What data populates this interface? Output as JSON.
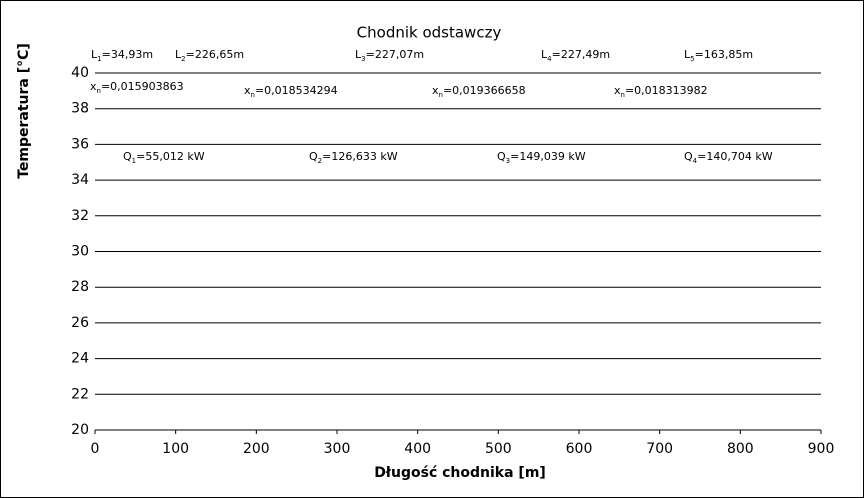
{
  "chart_data": {
    "type": "line",
    "title": "Chodnik odstawczy",
    "xlabel": "Długość chodnika [m]",
    "ylabel": "Temperatura [°C]",
    "xlim": [
      0,
      900
    ],
    "xticks": [
      0,
      100,
      200,
      300,
      400,
      500,
      600,
      700,
      800,
      900
    ],
    "ylim": [
      20,
      40
    ],
    "yticks": [
      20,
      22,
      24,
      26,
      28,
      30,
      32,
      34,
      36,
      38,
      40
    ],
    "grid": true,
    "grid_color": "#000000",
    "annotations": [
      {
        "symbol": "L",
        "subscript": "1",
        "text": "=34,93m"
      },
      {
        "symbol": "L",
        "subscript": "2",
        "text": "=226,65m"
      },
      {
        "symbol": "L",
        "subscript": "3",
        "text": "=227,07m"
      },
      {
        "symbol": "L",
        "subscript": "4",
        "text": "=227,49m"
      },
      {
        "symbol": "L",
        "subscript": "5",
        "text": "=163,85m"
      },
      {
        "symbol": "x",
        "subscript": "n",
        "text": "=0,015903863"
      },
      {
        "symbol": "x",
        "subscript": "n",
        "text": "=0,018534294"
      },
      {
        "symbol": "x",
        "subscript": "n",
        "text": "=0,019366658"
      },
      {
        "symbol": "x",
        "subscript": "n",
        "text": "=0,018313982"
      },
      {
        "symbol": "Q",
        "subscript": "1",
        "text": "=55,012 kW"
      },
      {
        "symbol": "Q",
        "subscript": "2",
        "text": "=126,633 kW"
      },
      {
        "symbol": "Q",
        "subscript": "3",
        "text": "=149,039 kW"
      },
      {
        "symbol": "Q",
        "subscript": "4",
        "text": "=140,704 kW"
      }
    ]
  }
}
